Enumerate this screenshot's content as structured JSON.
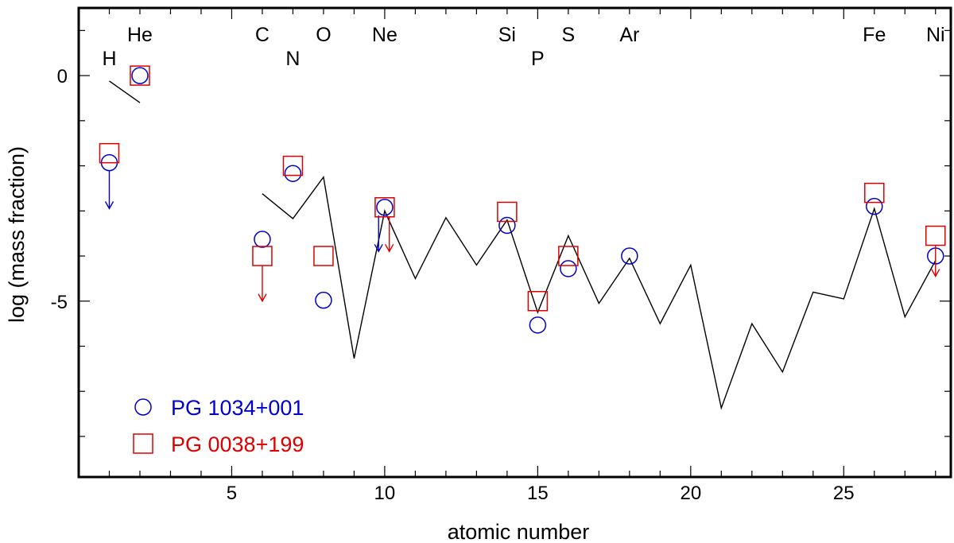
{
  "chart_data": {
    "type": "scatter",
    "title": "",
    "xlabel": "atomic number",
    "ylabel": "log (mass fraction)",
    "xlim": [
      0,
      28.5
    ],
    "ylim": [
      -8.9,
      1.5
    ],
    "xticks": [
      5,
      10,
      15,
      20,
      25
    ],
    "yticks": [
      0,
      -5
    ],
    "grid": false,
    "legend_placement": "bottom-left",
    "element_labels": [
      {
        "symbol": "H",
        "z": 1,
        "row": "lower"
      },
      {
        "symbol": "He",
        "z": 2,
        "row": "upper"
      },
      {
        "symbol": "C",
        "z": 6,
        "row": "upper"
      },
      {
        "symbol": "N",
        "z": 7,
        "row": "lower"
      },
      {
        "symbol": "O",
        "z": 8,
        "row": "upper"
      },
      {
        "symbol": "Ne",
        "z": 10,
        "row": "upper"
      },
      {
        "symbol": "Si",
        "z": 14,
        "row": "upper"
      },
      {
        "symbol": "P",
        "z": 15,
        "row": "lower"
      },
      {
        "symbol": "S",
        "z": 16,
        "row": "upper"
      },
      {
        "symbol": "Ar",
        "z": 18,
        "row": "upper"
      },
      {
        "symbol": "Fe",
        "z": 26,
        "row": "upper"
      },
      {
        "symbol": "Ni",
        "z": 28,
        "row": "upper"
      }
    ],
    "reference_line": {
      "color": "#000000",
      "segments": [
        {
          "x": [
            1,
            2
          ],
          "y": [
            -0.12,
            -0.6
          ]
        },
        {
          "x": [
            6,
            7,
            8,
            9,
            10,
            11,
            12,
            13,
            14,
            15,
            16,
            17,
            18,
            19,
            20,
            21,
            22,
            23,
            24,
            25,
            26,
            27,
            28
          ],
          "y": [
            -2.62,
            -3.17,
            -2.25,
            -6.27,
            -3.0,
            -4.5,
            -3.15,
            -4.2,
            -3.2,
            -5.25,
            -3.55,
            -5.05,
            -4.05,
            -5.5,
            -4.2,
            -7.37,
            -5.5,
            -6.57,
            -4.8,
            -4.95,
            -2.95,
            -5.35,
            -4.1
          ]
        }
      ]
    },
    "series": [
      {
        "name": "PG 1034+001",
        "marker": "circle",
        "color": "#0000cc",
        "points": [
          {
            "x": 1,
            "y": -1.93,
            "upper_limit": true,
            "arrow_to": -2.95
          },
          {
            "x": 2,
            "y": 0.0
          },
          {
            "x": 6,
            "y": -3.63
          },
          {
            "x": 7,
            "y": -2.17
          },
          {
            "x": 8,
            "y": -4.98
          },
          {
            "x": 10,
            "y": -2.92,
            "upper_limit": true,
            "arrow_to": -3.9,
            "arrow_dx": -0.2
          },
          {
            "x": 14,
            "y": -3.32
          },
          {
            "x": 15,
            "y": -5.53
          },
          {
            "x": 16,
            "y": -4.28
          },
          {
            "x": 18,
            "y": -4.0
          },
          {
            "x": 26,
            "y": -2.9
          },
          {
            "x": 28,
            "y": -4.0
          }
        ]
      },
      {
        "name": "PG 0038+199",
        "marker": "square",
        "color": "#dd0000",
        "points": [
          {
            "x": 1,
            "y": -1.72
          },
          {
            "x": 2,
            "y": 0.0
          },
          {
            "x": 6,
            "y": -4.0,
            "upper_limit": true,
            "arrow_to": -5.0
          },
          {
            "x": 7,
            "y": -2.0
          },
          {
            "x": 8,
            "y": -4.0
          },
          {
            "x": 10,
            "y": -2.92,
            "upper_limit": true,
            "arrow_to": -3.9,
            "arrow_dx": 0.15
          },
          {
            "x": 14,
            "y": -3.02
          },
          {
            "x": 15,
            "y": -5.0
          },
          {
            "x": 16,
            "y": -4.0
          },
          {
            "x": 26,
            "y": -2.6
          },
          {
            "x": 28,
            "y": -3.55,
            "upper_limit": true,
            "arrow_to": -4.45
          }
        ]
      }
    ]
  }
}
